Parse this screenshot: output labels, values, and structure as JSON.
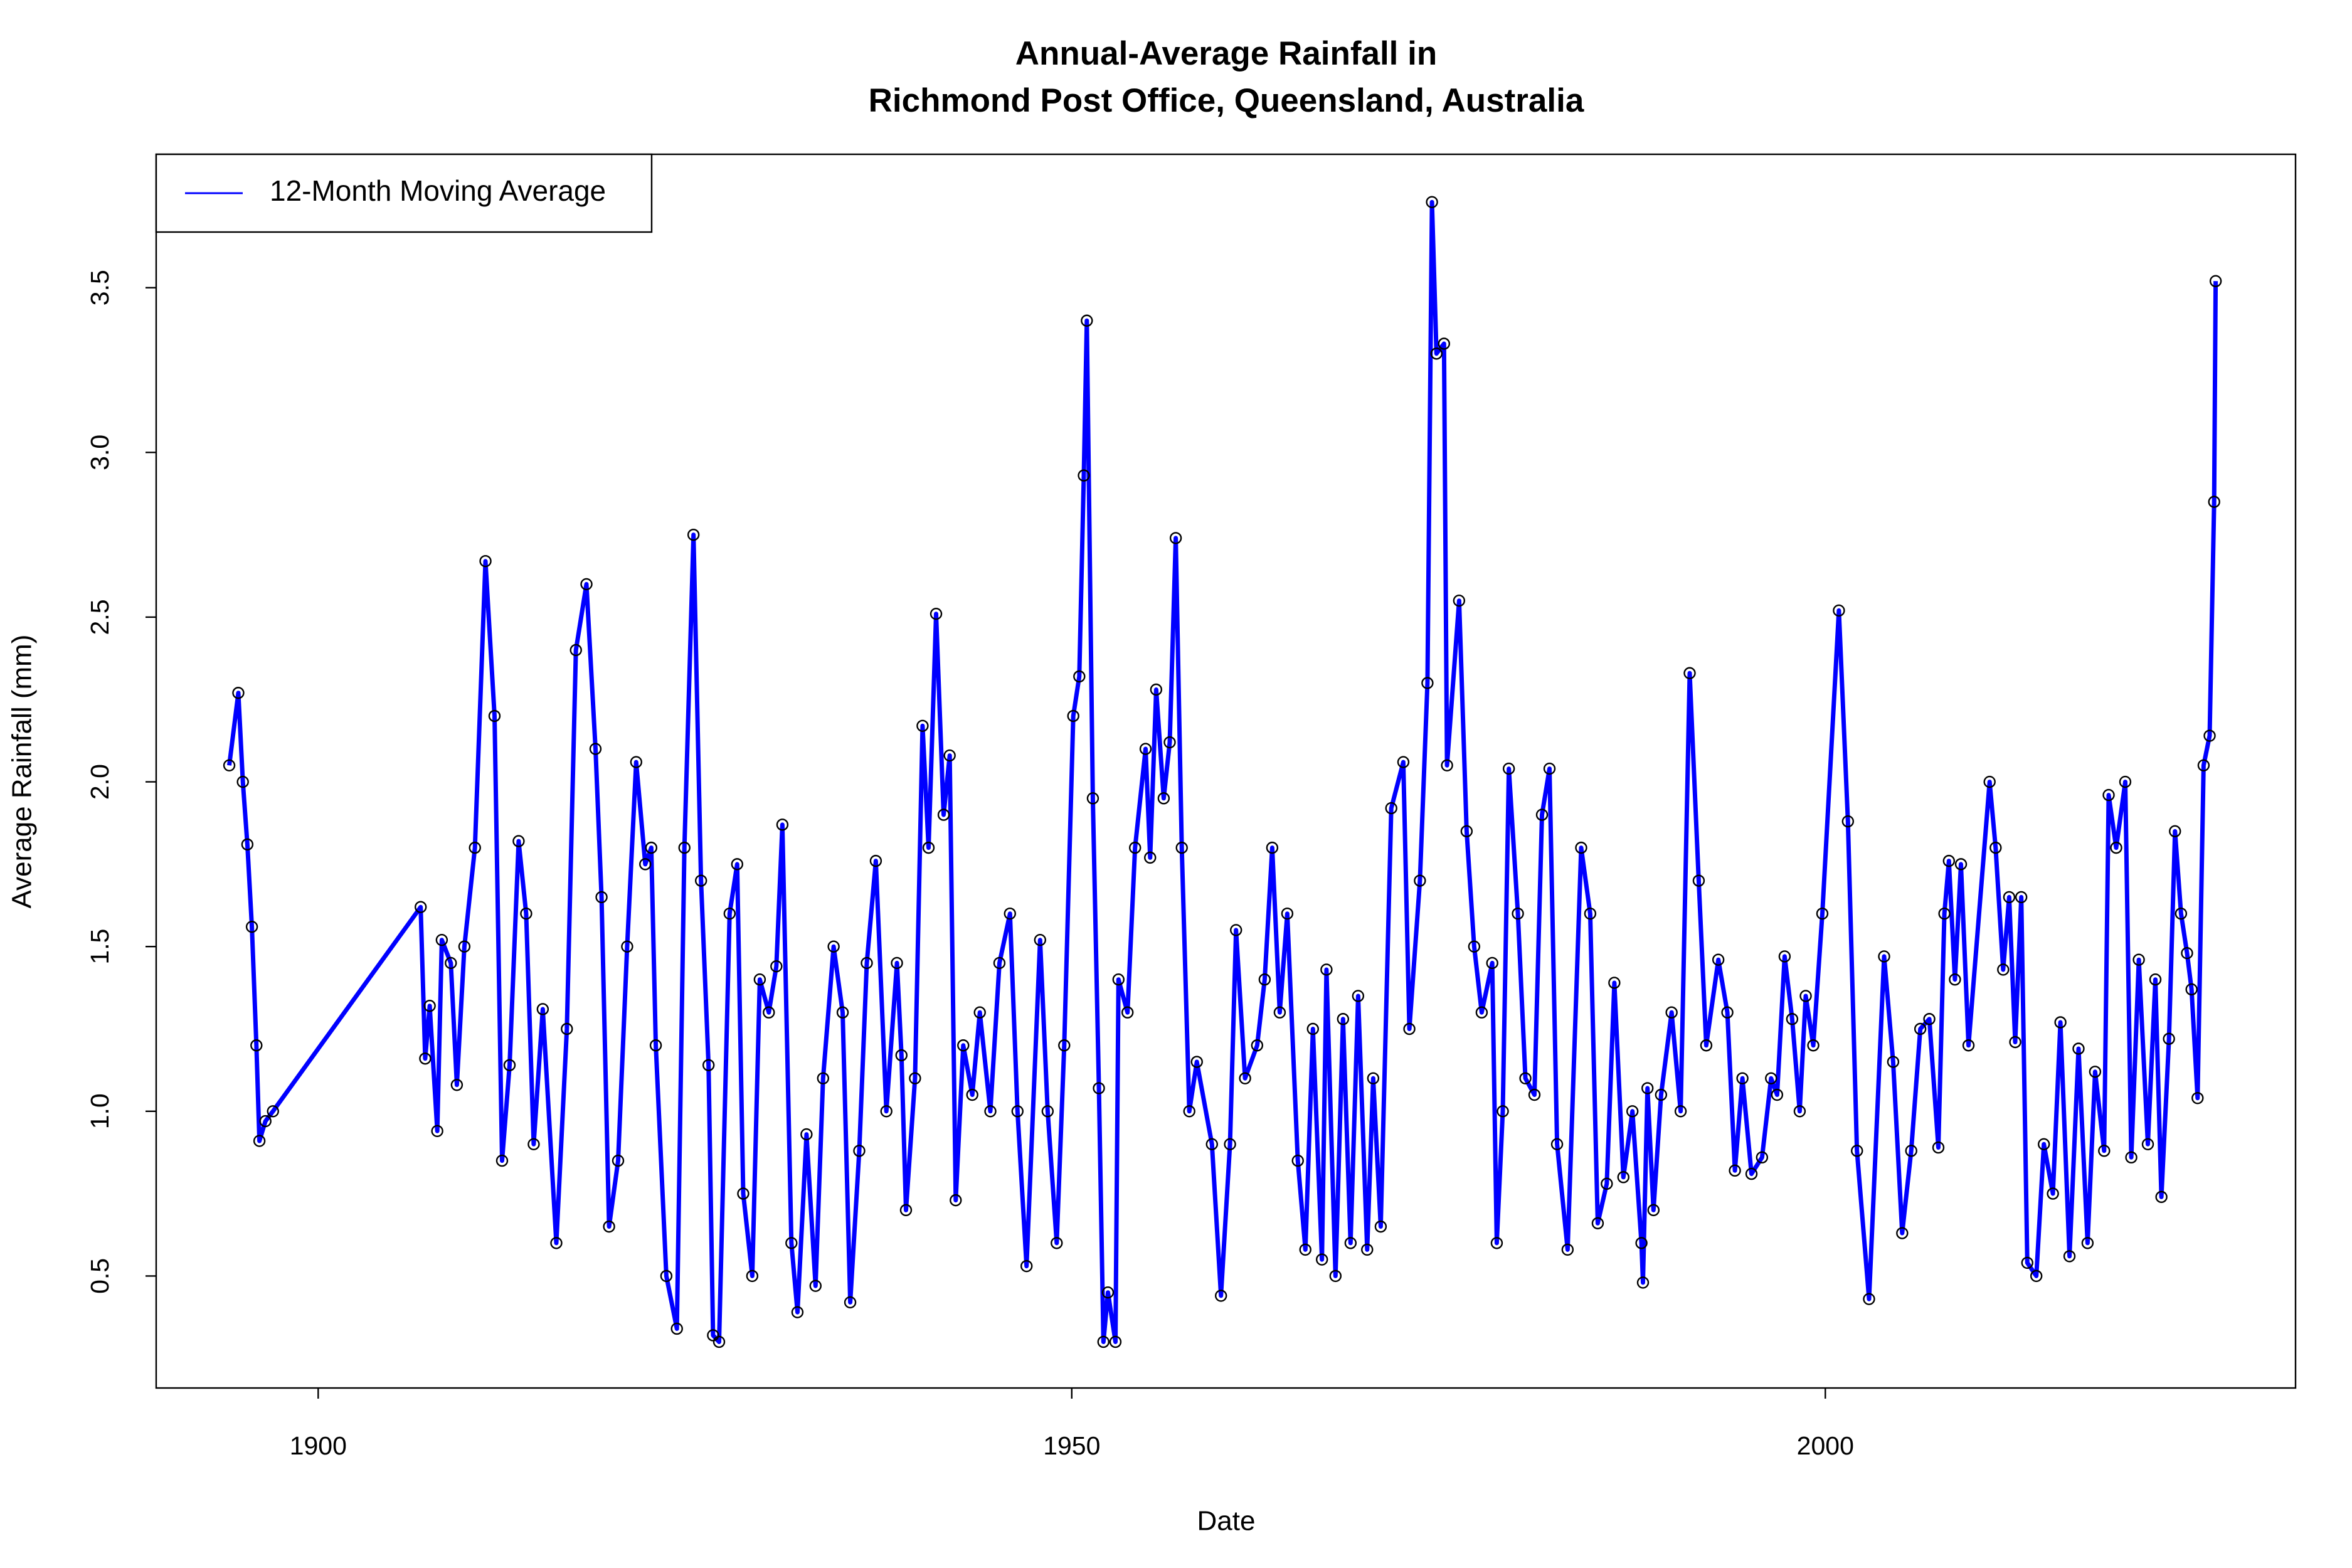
{
  "chart_data": {
    "type": "line",
    "title": [
      "Annual-Average Rainfall in",
      "Richmond Post Office, Queensland, Australia"
    ],
    "x_label": "Date",
    "y_label": "Average Rainfall (mm)",
    "legend_position": "top-left",
    "markers": true,
    "xlim": [
      1889.25,
      2031.2
    ],
    "ylim": [
      0.16,
      3.905
    ],
    "xticks": [
      1900,
      1950,
      2000
    ],
    "yticks": [
      0.5,
      {
        "value": 1,
        "label": "1.0"
      },
      1.5,
      {
        "value": 2,
        "label": "2.0"
      },
      2.5,
      {
        "value": 3,
        "label": "3.0"
      },
      3.5
    ],
    "x": [
      1894.1,
      1894.7,
      1895.0,
      1895.3,
      1895.6,
      1895.9,
      1896.1,
      1896.5,
      1897.0,
      1906.8,
      1907.1,
      1907.4,
      1907.9,
      1908.2,
      1908.8,
      1909.2,
      1909.7,
      1910.4,
      1911.1,
      1911.7,
      1912.2,
      1912.7,
      1913.3,
      1913.8,
      1914.3,
      1914.9,
      1915.8,
      1916.5,
      1917.1,
      1917.8,
      1918.4,
      1918.8,
      1919.3,
      1919.9,
      1920.5,
      1921.1,
      1921.7,
      1922.1,
      1922.4,
      1923.1,
      1923.8,
      1924.3,
      1924.9,
      1925.4,
      1925.9,
      1926.2,
      1926.6,
      1927.3,
      1927.8,
      1928.2,
      1928.8,
      1929.3,
      1929.9,
      1930.4,
      1930.8,
      1931.4,
      1931.8,
      1932.4,
      1933.0,
      1933.5,
      1934.2,
      1934.8,
      1935.3,
      1935.9,
      1936.4,
      1937.0,
      1937.7,
      1938.4,
      1938.7,
      1939.0,
      1939.6,
      1940.1,
      1940.5,
      1941.0,
      1941.5,
      1941.9,
      1942.3,
      1942.8,
      1943.4,
      1943.9,
      1944.6,
      1945.2,
      1945.9,
      1946.4,
      1947.0,
      1947.9,
      1948.4,
      1949.0,
      1949.5,
      1950.1,
      1950.5,
      1950.8,
      1951.0,
      1951.4,
      1951.8,
      1952.1,
      1952.4,
      1952.9,
      1953.1,
      1953.7,
      1954.2,
      1954.9,
      1955.2,
      1955.6,
      1956.1,
      1956.5,
      1956.9,
      1957.3,
      1957.8,
      1958.3,
      1959.3,
      1959.9,
      1960.5,
      1960.9,
      1961.5,
      1962.3,
      1962.8,
      1963.3,
      1963.8,
      1964.3,
      1965.0,
      1965.5,
      1966.0,
      1966.6,
      1966.9,
      1967.5,
      1968.0,
      1968.5,
      1969.0,
      1969.6,
      1970.0,
      1970.5,
      1971.2,
      1972.0,
      1972.4,
      1973.1,
      1973.6,
      1973.9,
      1974.2,
      1974.7,
      1974.9,
      1975.7,
      1976.2,
      1976.7,
      1977.2,
      1977.9,
      1978.2,
      1978.6,
      1979.0,
      1979.6,
      1980.1,
      1980.7,
      1981.2,
      1981.7,
      1982.2,
      1982.9,
      1983.8,
      1984.4,
      1984.9,
      1985.5,
      1986.0,
      1986.6,
      1987.2,
      1987.8,
      1987.9,
      1988.2,
      1988.6,
      1989.1,
      1989.8,
      1990.4,
      1991.0,
      1991.6,
      1992.1,
      1992.9,
      1993.5,
      1994.0,
      1994.5,
      1995.1,
      1995.8,
      1996.4,
      1996.8,
      1997.3,
      1997.8,
      1998.3,
      1998.7,
      1999.2,
      1999.8,
      2000.9,
      2001.5,
      2002.1,
      2002.9,
      2003.9,
      2004.5,
      2005.1,
      2005.7,
      2006.3,
      2006.9,
      2007.5,
      2007.9,
      2008.2,
      2008.6,
      2009.0,
      2009.5,
      2010.9,
      2011.3,
      2011.8,
      2012.2,
      2012.6,
      2013.0,
      2013.4,
      2014.0,
      2014.5,
      2015.1,
      2015.6,
      2016.2,
      2016.8,
      2017.4,
      2017.9,
      2018.5,
      2018.8,
      2019.3,
      2019.9,
      2020.3,
      2020.8,
      2021.4,
      2021.9,
      2022.3,
      2022.8,
      2023.2,
      2023.6,
      2024.0,
      2024.3,
      2024.7,
      2025.1,
      2025.5,
      2025.8,
      2025.9
    ],
    "series": [
      {
        "name": "12-Month Moving Average",
        "color": "#0000ff",
        "values": [
          2.05,
          2.27,
          2.0,
          1.81,
          1.56,
          1.2,
          0.91,
          0.97,
          1.0,
          1.62,
          1.16,
          1.32,
          0.94,
          1.52,
          1.45,
          1.08,
          1.5,
          1.8,
          2.67,
          2.2,
          0.85,
          1.14,
          1.82,
          1.6,
          0.9,
          1.31,
          0.6,
          1.25,
          2.4,
          2.6,
          2.1,
          1.65,
          0.65,
          0.85,
          1.5,
          2.06,
          1.75,
          1.8,
          1.2,
          0.5,
          0.34,
          1.8,
          2.75,
          1.7,
          1.14,
          0.32,
          0.3,
          1.6,
          1.75,
          0.75,
          0.5,
          1.4,
          1.3,
          1.44,
          1.87,
          0.6,
          0.39,
          0.93,
          0.47,
          1.1,
          1.5,
          1.3,
          0.42,
          0.88,
          1.45,
          1.76,
          1.0,
          1.45,
          1.17,
          0.7,
          1.1,
          2.17,
          1.8,
          2.51,
          1.9,
          2.08,
          0.73,
          1.2,
          1.05,
          1.3,
          1.0,
          1.45,
          1.6,
          1.0,
          0.53,
          1.52,
          1.0,
          0.6,
          1.2,
          2.2,
          2.32,
          2.93,
          3.4,
          1.95,
          1.07,
          0.3,
          0.45,
          0.3,
          1.4,
          1.3,
          1.8,
          2.1,
          1.77,
          2.28,
          1.95,
          2.12,
          2.74,
          1.8,
          1.0,
          1.15,
          0.9,
          0.44,
          0.9,
          1.55,
          1.1,
          1.2,
          1.4,
          1.8,
          1.3,
          1.6,
          0.85,
          0.58,
          1.25,
          0.55,
          1.43,
          0.5,
          1.28,
          0.6,
          1.35,
          0.58,
          1.1,
          0.65,
          1.92,
          2.06,
          1.25,
          1.7,
          2.3,
          3.76,
          3.3,
          3.33,
          2.05,
          2.55,
          1.85,
          1.5,
          1.3,
          1.45,
          0.6,
          1.0,
          2.04,
          1.6,
          1.1,
          1.05,
          1.9,
          2.04,
          0.9,
          0.58,
          1.8,
          1.6,
          0.66,
          0.78,
          1.39,
          0.8,
          1.0,
          0.6,
          0.48,
          1.07,
          0.7,
          1.05,
          1.3,
          1.0,
          2.33,
          1.7,
          1.2,
          1.46,
          1.3,
          0.82,
          1.1,
          0.81,
          0.86,
          1.1,
          1.05,
          1.47,
          1.28,
          1.0,
          1.35,
          1.2,
          1.6,
          2.52,
          1.88,
          0.88,
          0.43,
          1.47,
          1.15,
          0.63,
          0.88,
          1.25,
          1.28,
          0.89,
          1.6,
          1.76,
          1.4,
          1.75,
          1.2,
          2.0,
          1.8,
          1.43,
          1.65,
          1.21,
          1.65,
          0.54,
          0.5,
          0.9,
          0.75,
          1.27,
          0.56,
          1.19,
          0.6,
          1.12,
          0.88,
          1.96,
          1.8,
          2.0,
          0.86,
          1.46,
          0.9,
          1.4,
          0.74,
          1.22,
          1.85,
          1.6,
          1.48,
          1.37,
          1.04,
          2.05,
          2.14,
          2.85,
          3.52
        ]
      }
    ]
  }
}
